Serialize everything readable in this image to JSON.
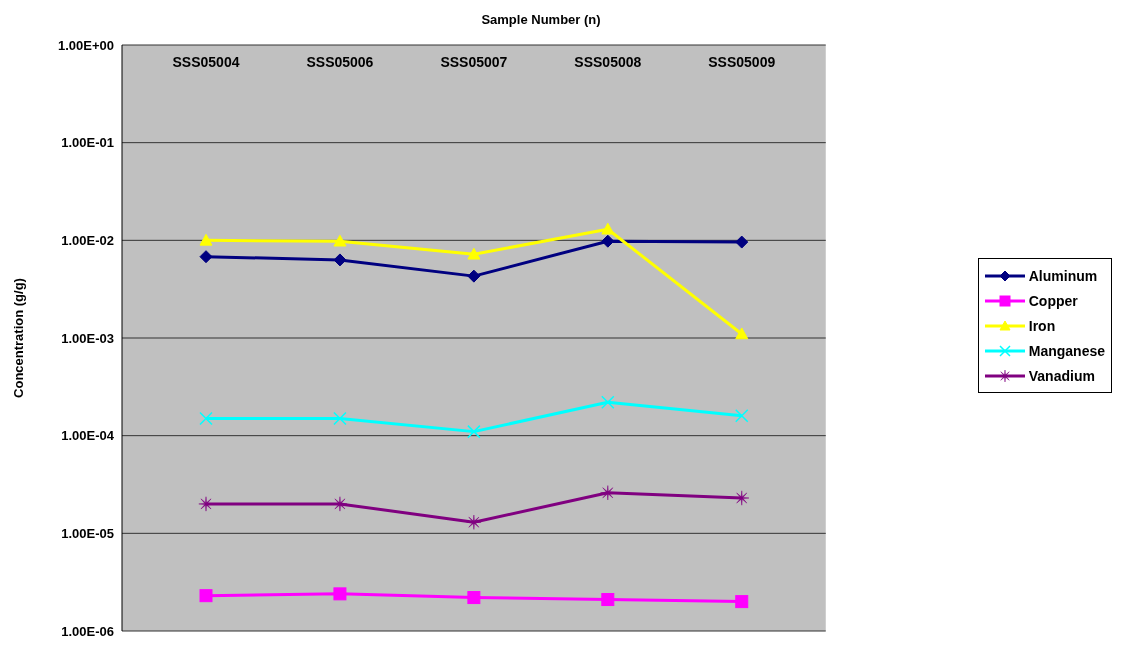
{
  "chart_data": {
    "type": "line",
    "xlabel": "Sample Number (n)",
    "ylabel": "Concentration (g/g)",
    "categories": [
      "SSS05004",
      "SSS05006",
      "SSS05007",
      "SSS05008",
      "SSS05009"
    ],
    "series": [
      {
        "name": "Aluminum",
        "color": "#000080",
        "marker": "diamond",
        "values": [
          0.0068,
          0.0063,
          0.0043,
          0.0098,
          0.0096
        ]
      },
      {
        "name": "Copper",
        "color": "#ff00ff",
        "marker": "square",
        "values": [
          2.3e-06,
          2.4e-06,
          2.2e-06,
          2.1e-06,
          2e-06
        ]
      },
      {
        "name": "Iron",
        "color": "#ffff00",
        "marker": "triangle",
        "values": [
          0.01,
          0.0098,
          0.0072,
          0.013,
          0.0011
        ]
      },
      {
        "name": "Manganese",
        "color": "#00ffff",
        "marker": "cross",
        "values": [
          0.00015,
          0.00015,
          0.00011,
          0.00022,
          0.00016
        ]
      },
      {
        "name": "Vanadium",
        "color": "#800080",
        "marker": "star",
        "values": [
          2e-05,
          2e-05,
          1.3e-05,
          2.6e-05,
          2.3e-05
        ]
      }
    ],
    "log": "y",
    "ylim": [
      1e-06,
      1
    ],
    "yticks": [
      {
        "value": 1e-06,
        "label": "1.00E-06"
      },
      {
        "value": 1e-05,
        "label": "1.00E-05"
      },
      {
        "value": 0.0001,
        "label": "1.00E-04"
      },
      {
        "value": 0.001,
        "label": "1.00E-03"
      },
      {
        "value": 0.01,
        "label": "1.00E-02"
      },
      {
        "value": 0.1,
        "label": "1.00E-01"
      },
      {
        "value": 1,
        "label": "1.00E+00"
      }
    ],
    "grid": "y",
    "legend": "right",
    "line_style": "solid"
  }
}
